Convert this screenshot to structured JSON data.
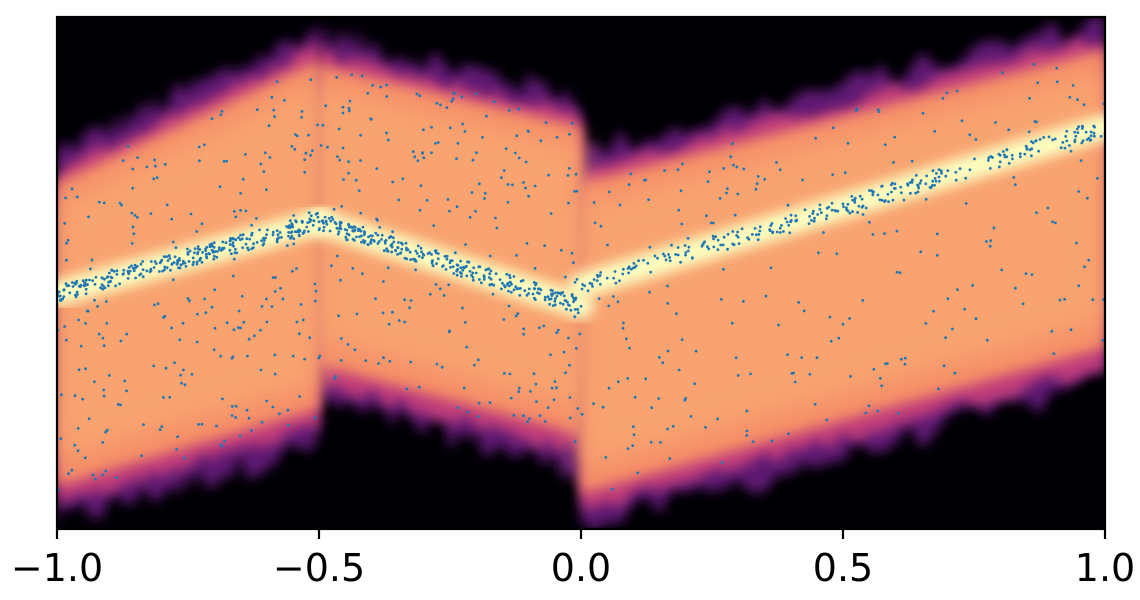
{
  "chart_data": {
    "type": "heatmap",
    "title": "",
    "xlabel": "",
    "ylabel": "",
    "xlim": [
      -1.0,
      1.0
    ],
    "ylim": [
      -1.0,
      1.0
    ],
    "x_ticks": [
      -1.0,
      -0.5,
      0.0,
      0.5,
      1.0
    ],
    "x_tick_labels": [
      "−1.0",
      "−0.5",
      "0.0",
      "0.5",
      "1.0"
    ],
    "y_ticks_visible": false,
    "grid": false,
    "legend": "none",
    "colormap": "magma",
    "colors": {
      "background": "#000004",
      "scatter": "#1f77b4",
      "axes": "#000000"
    },
    "heatmap": {
      "description_free": true,
      "piecewise_segments": [
        {
          "x": [
            -1.0,
            -0.5
          ],
          "low": [
            -0.92,
            -0.62
          ],
          "high": [
            0.42,
            0.9
          ],
          "core": [
            -0.08,
            0.2
          ]
        },
        {
          "x": [
            -0.5,
            0.0
          ],
          "low": [
            -0.45,
            -0.72
          ],
          "high": [
            0.88,
            0.64
          ],
          "core": [
            0.2,
            -0.13
          ]
        },
        {
          "x": [
            0.0,
            1.0
          ],
          "low": [
            -0.95,
            -0.38
          ],
          "high": [
            0.42,
            0.94
          ],
          "core": [
            -0.05,
            0.57
          ]
        }
      ]
    },
    "series": [
      {
        "type": "scatter",
        "marker_size": 1.4,
        "points_sample": [
          [
            -0.98,
            -0.05
          ],
          [
            -0.95,
            -0.03
          ],
          [
            -0.9,
            0.0
          ],
          [
            -0.85,
            0.02
          ],
          [
            -0.8,
            0.05
          ],
          [
            -0.75,
            0.08
          ],
          [
            -0.7,
            0.1
          ],
          [
            -0.65,
            0.13
          ],
          [
            -0.6,
            0.15
          ],
          [
            -0.55,
            0.18
          ],
          [
            -0.5,
            0.2
          ],
          [
            -0.45,
            0.17
          ],
          [
            -0.4,
            0.13
          ],
          [
            -0.35,
            0.1
          ],
          [
            -0.3,
            0.07
          ],
          [
            -0.25,
            0.04
          ],
          [
            -0.2,
            0.0
          ],
          [
            -0.15,
            -0.04
          ],
          [
            -0.1,
            -0.08
          ],
          [
            -0.05,
            -0.11
          ],
          [
            0.0,
            -0.13
          ],
          [
            0.05,
            -0.02
          ],
          [
            0.1,
            0.02
          ],
          [
            0.2,
            0.08
          ],
          [
            0.3,
            0.14
          ],
          [
            0.4,
            0.2
          ],
          [
            0.5,
            0.27
          ],
          [
            0.6,
            0.33
          ],
          [
            0.7,
            0.4
          ],
          [
            0.8,
            0.46
          ],
          [
            0.9,
            0.52
          ],
          [
            0.98,
            0.57
          ],
          [
            -0.9,
            -0.4
          ],
          [
            -0.8,
            -0.6
          ],
          [
            -0.7,
            -0.3
          ],
          [
            -0.6,
            -0.5
          ],
          [
            -0.4,
            0.6
          ],
          [
            -0.3,
            0.45
          ],
          [
            -0.2,
            0.7
          ],
          [
            -0.1,
            0.3
          ],
          [
            0.1,
            -0.6
          ],
          [
            0.3,
            -0.4
          ],
          [
            0.5,
            -0.2
          ],
          [
            0.7,
            -0.1
          ],
          [
            0.9,
            0.2
          ],
          [
            0.95,
            -0.05
          ]
        ]
      }
    ]
  }
}
